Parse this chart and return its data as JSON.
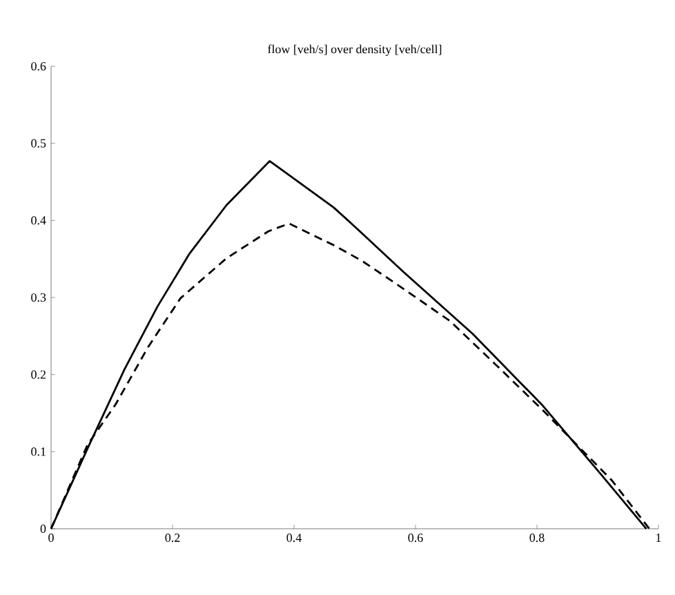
{
  "chart_data": {
    "type": "line",
    "title": "flow [veh/s] over density [veh/cell]",
    "series": [
      {
        "color": "#000000",
        "line_style": "solid",
        "x": [
          0,
          0.06,
          0.121,
          0.175,
          0.228,
          0.289,
          0.36,
          0.465,
          0.511,
          0.579,
          0.694,
          0.808,
          0.907,
          0.98
        ],
        "values": [
          0,
          0.104,
          0.207,
          0.288,
          0.357,
          0.42,
          0.477,
          0.417,
          0.384,
          0.334,
          0.253,
          0.161,
          0.069,
          0
        ]
      },
      {
        "color": "#000000",
        "line_style": "dashed",
        "x": [
          0,
          0.06,
          0.106,
          0.16,
          0.213,
          0.289,
          0.358,
          0.392,
          0.465,
          0.511,
          0.564,
          0.656,
          0.732,
          0.808,
          0.923,
          0.985
        ],
        "values": [
          0,
          0.109,
          0.161,
          0.236,
          0.299,
          0.351,
          0.386,
          0.396,
          0.368,
          0.348,
          0.32,
          0.27,
          0.213,
          0.155,
          0.063,
          0
        ]
      }
    ],
    "xlim": [
      0,
      1
    ],
    "ylim": [
      0,
      0.6
    ],
    "xticks": [
      0,
      0.2,
      0.4,
      0.6,
      0.8,
      1
    ],
    "yticks": [
      0,
      0.1,
      0.2,
      0.3,
      0.4,
      0.5,
      0.6
    ],
    "grid": false,
    "marker": "none"
  }
}
